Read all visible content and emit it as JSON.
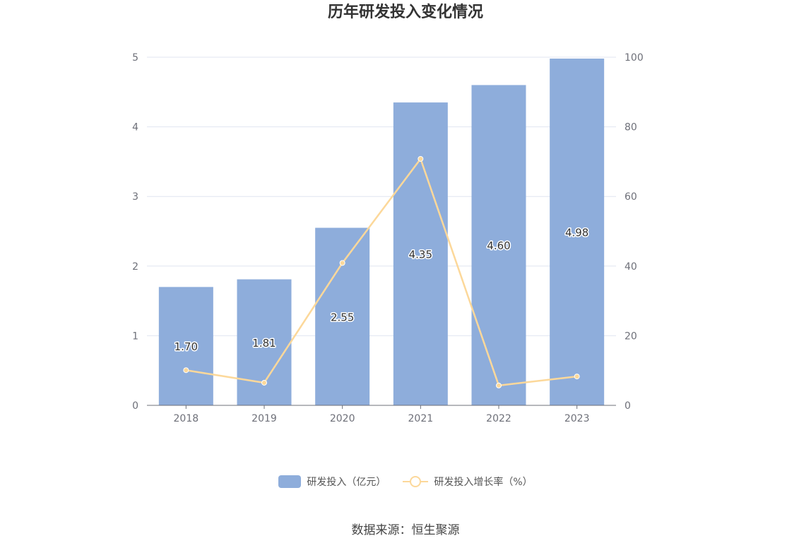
{
  "chart_data": {
    "type": "bar",
    "title": "历年研发投入变化情况",
    "categories": [
      "2018",
      "2019",
      "2020",
      "2021",
      "2022",
      "2023"
    ],
    "series": [
      {
        "name": "研发投入（亿元）",
        "type": "bar",
        "axis": "left",
        "values": [
          1.7,
          1.81,
          2.55,
          4.35,
          4.6,
          4.98
        ],
        "labels": [
          "1.70",
          "1.81",
          "2.55",
          "4.35",
          "4.60",
          "4.98"
        ],
        "color": "#8eaddb"
      },
      {
        "name": "研发投入增长率（%）",
        "type": "line",
        "axis": "right",
        "values": [
          10.1,
          6.5,
          40.9,
          70.8,
          5.7,
          8.3
        ],
        "color": "#fcd89a"
      }
    ],
    "y_left": {
      "min": 0,
      "max": 5,
      "ticks": [
        "0",
        "1",
        "2",
        "3",
        "4",
        "5"
      ]
    },
    "y_right": {
      "min": 0,
      "max": 100,
      "ticks": [
        "0",
        "20",
        "40",
        "60",
        "80",
        "100"
      ]
    },
    "grid": true,
    "legend_position": "bottom"
  },
  "source": "数据来源：恒生聚源"
}
